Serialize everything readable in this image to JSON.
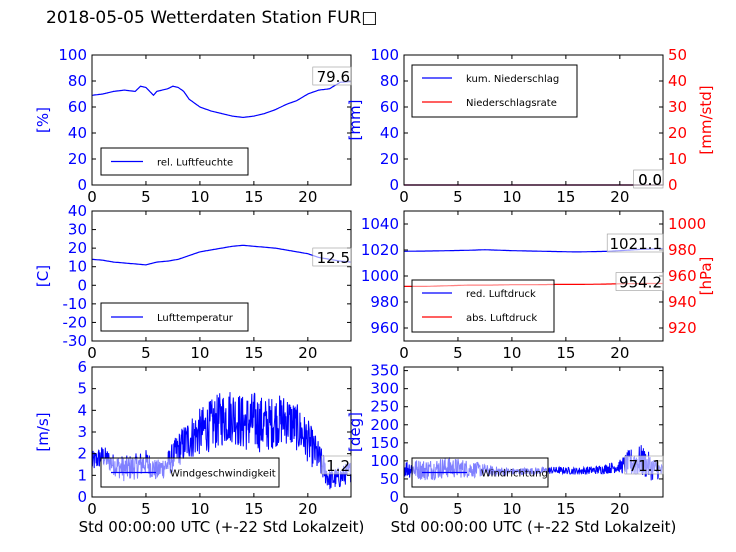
{
  "title": "2018-05-05 Wetterdaten Station FUR□",
  "colors": {
    "primary": "#0000ff",
    "secondary": "#ff0000",
    "noisy": "#8080ff"
  },
  "chart_data": [
    {
      "id": "humidity",
      "type": "line",
      "ylabel": "[%]",
      "xlabel": "",
      "xlim": [
        0,
        24
      ],
      "ylim": [
        0,
        100
      ],
      "xticks": [
        0,
        5,
        10,
        15,
        20
      ],
      "yticks": [
        0,
        20,
        40,
        60,
        80,
        100
      ],
      "legend": {
        "placement": "lower-left"
      },
      "current_value": "79.6",
      "series": [
        {
          "name": "rel. Luftfeuchte",
          "color": "#0000ff",
          "axis": "left",
          "x": [
            0,
            1,
            2,
            3,
            4,
            4.5,
            5,
            5.7,
            6,
            7,
            7.5,
            8,
            8.5,
            9,
            10,
            11,
            12,
            13,
            14,
            15,
            16,
            17,
            18,
            19,
            20,
            21,
            22,
            23,
            24
          ],
          "y": [
            69,
            70,
            72,
            73,
            72,
            76,
            75,
            69,
            72,
            74,
            76,
            75,
            72,
            66,
            60,
            57,
            55,
            53,
            52,
            53,
            55,
            58,
            62,
            65,
            70,
            73,
            74,
            79,
            79.6
          ]
        }
      ]
    },
    {
      "id": "precip",
      "type": "line",
      "ylabel": "[mm]",
      "y2label": "[mm/std]",
      "xlabel": "",
      "xlim": [
        0,
        24
      ],
      "ylim": [
        0,
        100
      ],
      "y2lim": [
        0,
        50
      ],
      "xticks": [
        0,
        5,
        10,
        15,
        20
      ],
      "yticks": [
        0,
        20,
        40,
        60,
        80,
        100
      ],
      "y2ticks": [
        0,
        10,
        20,
        30,
        40,
        50
      ],
      "legend": {
        "placement": "upper-left"
      },
      "current_value": "0.0",
      "current_value2": "0.0",
      "series": [
        {
          "name": "kum. Niederschlag",
          "color": "#0000ff",
          "axis": "left",
          "x": [
            0,
            24
          ],
          "y": [
            0,
            0
          ]
        },
        {
          "name": "Niederschlagsrate",
          "color": "#ff0000",
          "axis": "right",
          "x": [
            0,
            24
          ],
          "y": [
            0,
            0
          ]
        }
      ]
    },
    {
      "id": "temperature",
      "type": "line",
      "ylabel": "[C]",
      "xlabel": "",
      "xlim": [
        0,
        24
      ],
      "ylim": [
        -30,
        40
      ],
      "xticks": [
        0,
        5,
        10,
        15,
        20
      ],
      "yticks": [
        -30,
        -20,
        -10,
        0,
        10,
        20,
        30,
        40
      ],
      "legend": {
        "placement": "lower-left"
      },
      "current_value": "12.5",
      "series": [
        {
          "name": "Lufttemperatur",
          "color": "#0000ff",
          "axis": "left",
          "x": [
            0,
            1,
            2,
            3,
            4,
            5,
            6,
            7,
            8,
            9,
            10,
            11,
            12,
            13,
            14,
            15,
            16,
            17,
            18,
            19,
            20,
            21,
            22,
            23,
            24
          ],
          "y": [
            14,
            13.5,
            12.5,
            12,
            11.5,
            11,
            12.5,
            13,
            14,
            16,
            18,
            19,
            20,
            21,
            21.5,
            21,
            20.5,
            20,
            19,
            18,
            17,
            15,
            14,
            13,
            12.5
          ]
        }
      ]
    },
    {
      "id": "pressure",
      "type": "line",
      "ylabel": "",
      "y2label": "[hPa]",
      "xlabel": "",
      "xlim": [
        0,
        24
      ],
      "ylim": [
        950,
        1050
      ],
      "y2lim": [
        910,
        1010
      ],
      "xticks": [
        0,
        5,
        10,
        15,
        20
      ],
      "yticks": [
        960,
        980,
        1000,
        1020,
        1040
      ],
      "y2ticks": [
        920,
        940,
        960,
        980,
        1000
      ],
      "legend": {
        "placement": "lower-left"
      },
      "current_value": "1021.1",
      "current_value2": "954.2",
      "series": [
        {
          "name": "red. Luftdruck",
          "color": "#0000ff",
          "axis": "left",
          "x": [
            0,
            3,
            6,
            7.5,
            10,
            13,
            16,
            19,
            22,
            24
          ],
          "y": [
            1019,
            1019.3,
            1019.8,
            1020.2,
            1019.5,
            1019,
            1018.5,
            1019,
            1020.5,
            1021.1
          ]
        },
        {
          "name": "abs. Luftdruck",
          "color": "#ff0000",
          "axis": "right",
          "x": [
            0,
            2,
            4,
            6,
            8,
            10,
            12,
            14,
            16,
            18,
            20,
            22,
            24
          ],
          "y": [
            952,
            952,
            952.5,
            953,
            953,
            953.3,
            953.3,
            953.5,
            953.5,
            953.7,
            954,
            954.2,
            954.2
          ]
        }
      ]
    },
    {
      "id": "windspeed",
      "type": "line",
      "ylabel": "[m/s]",
      "xlabel": "Std 00:00:00 UTC (+-22 Std Lokalzeit)",
      "xlim": [
        0,
        24
      ],
      "ylim": [
        0,
        6
      ],
      "xticks": [
        0,
        5,
        10,
        15,
        20
      ],
      "yticks": [
        0,
        1,
        2,
        3,
        4,
        5,
        6
      ],
      "legend": {
        "placement": "lower-left"
      },
      "current_value": "1.2",
      "series": [
        {
          "name": "Windgeschwindigkeit",
          "color": "#0000ff",
          "axis": "left",
          "x": [
            0,
            1,
            2,
            3,
            4,
            5,
            6,
            7,
            8,
            9,
            10,
            11,
            12,
            13,
            14,
            15,
            16,
            17,
            18,
            19,
            20,
            21,
            22,
            23,
            24
          ],
          "y": [
            1.6,
            1.9,
            1.5,
            1.3,
            1.4,
            1.6,
            1.2,
            1.5,
            2.2,
            2.7,
            3.0,
            3.3,
            3.6,
            3.8,
            3.4,
            3.5,
            3.3,
            3.5,
            3.6,
            3.2,
            2.6,
            1.8,
            0.8,
            0.9,
            1.2
          ],
          "amplitude": [
            0.5,
            0.5,
            0.5,
            0.6,
            0.6,
            0.6,
            0.5,
            0.6,
            0.8,
            1.0,
            1.1,
            1.2,
            1.3,
            1.3,
            1.3,
            1.4,
            1.3,
            1.2,
            1.2,
            1.1,
            1.0,
            0.8,
            0.5,
            0.5,
            0.5
          ]
        }
      ]
    },
    {
      "id": "winddir",
      "type": "line",
      "ylabel": "[deg]",
      "xlabel": "Std 00:00:00 UTC (+-22 Std Lokalzeit)",
      "xlim": [
        0,
        24
      ],
      "ylim": [
        0,
        360
      ],
      "xticks": [
        0,
        5,
        10,
        15,
        20
      ],
      "yticks": [
        0,
        50,
        100,
        150,
        200,
        250,
        300,
        350
      ],
      "legend": {
        "placement": "lower-left"
      },
      "current_value": "71.1",
      "series": [
        {
          "name": "Windrichtung",
          "color": "#0000ff",
          "axis": "left",
          "x": [
            0,
            2,
            4,
            6,
            8,
            10,
            12,
            14,
            16,
            18,
            20,
            21,
            22,
            23,
            24
          ],
          "y": [
            80,
            75,
            82,
            78,
            72,
            70,
            72,
            74,
            72,
            75,
            85,
            95,
            100,
            80,
            71
          ],
          "amplitude": [
            25,
            30,
            30,
            25,
            15,
            10,
            10,
            10,
            10,
            12,
            18,
            40,
            45,
            35,
            20
          ]
        }
      ]
    }
  ]
}
